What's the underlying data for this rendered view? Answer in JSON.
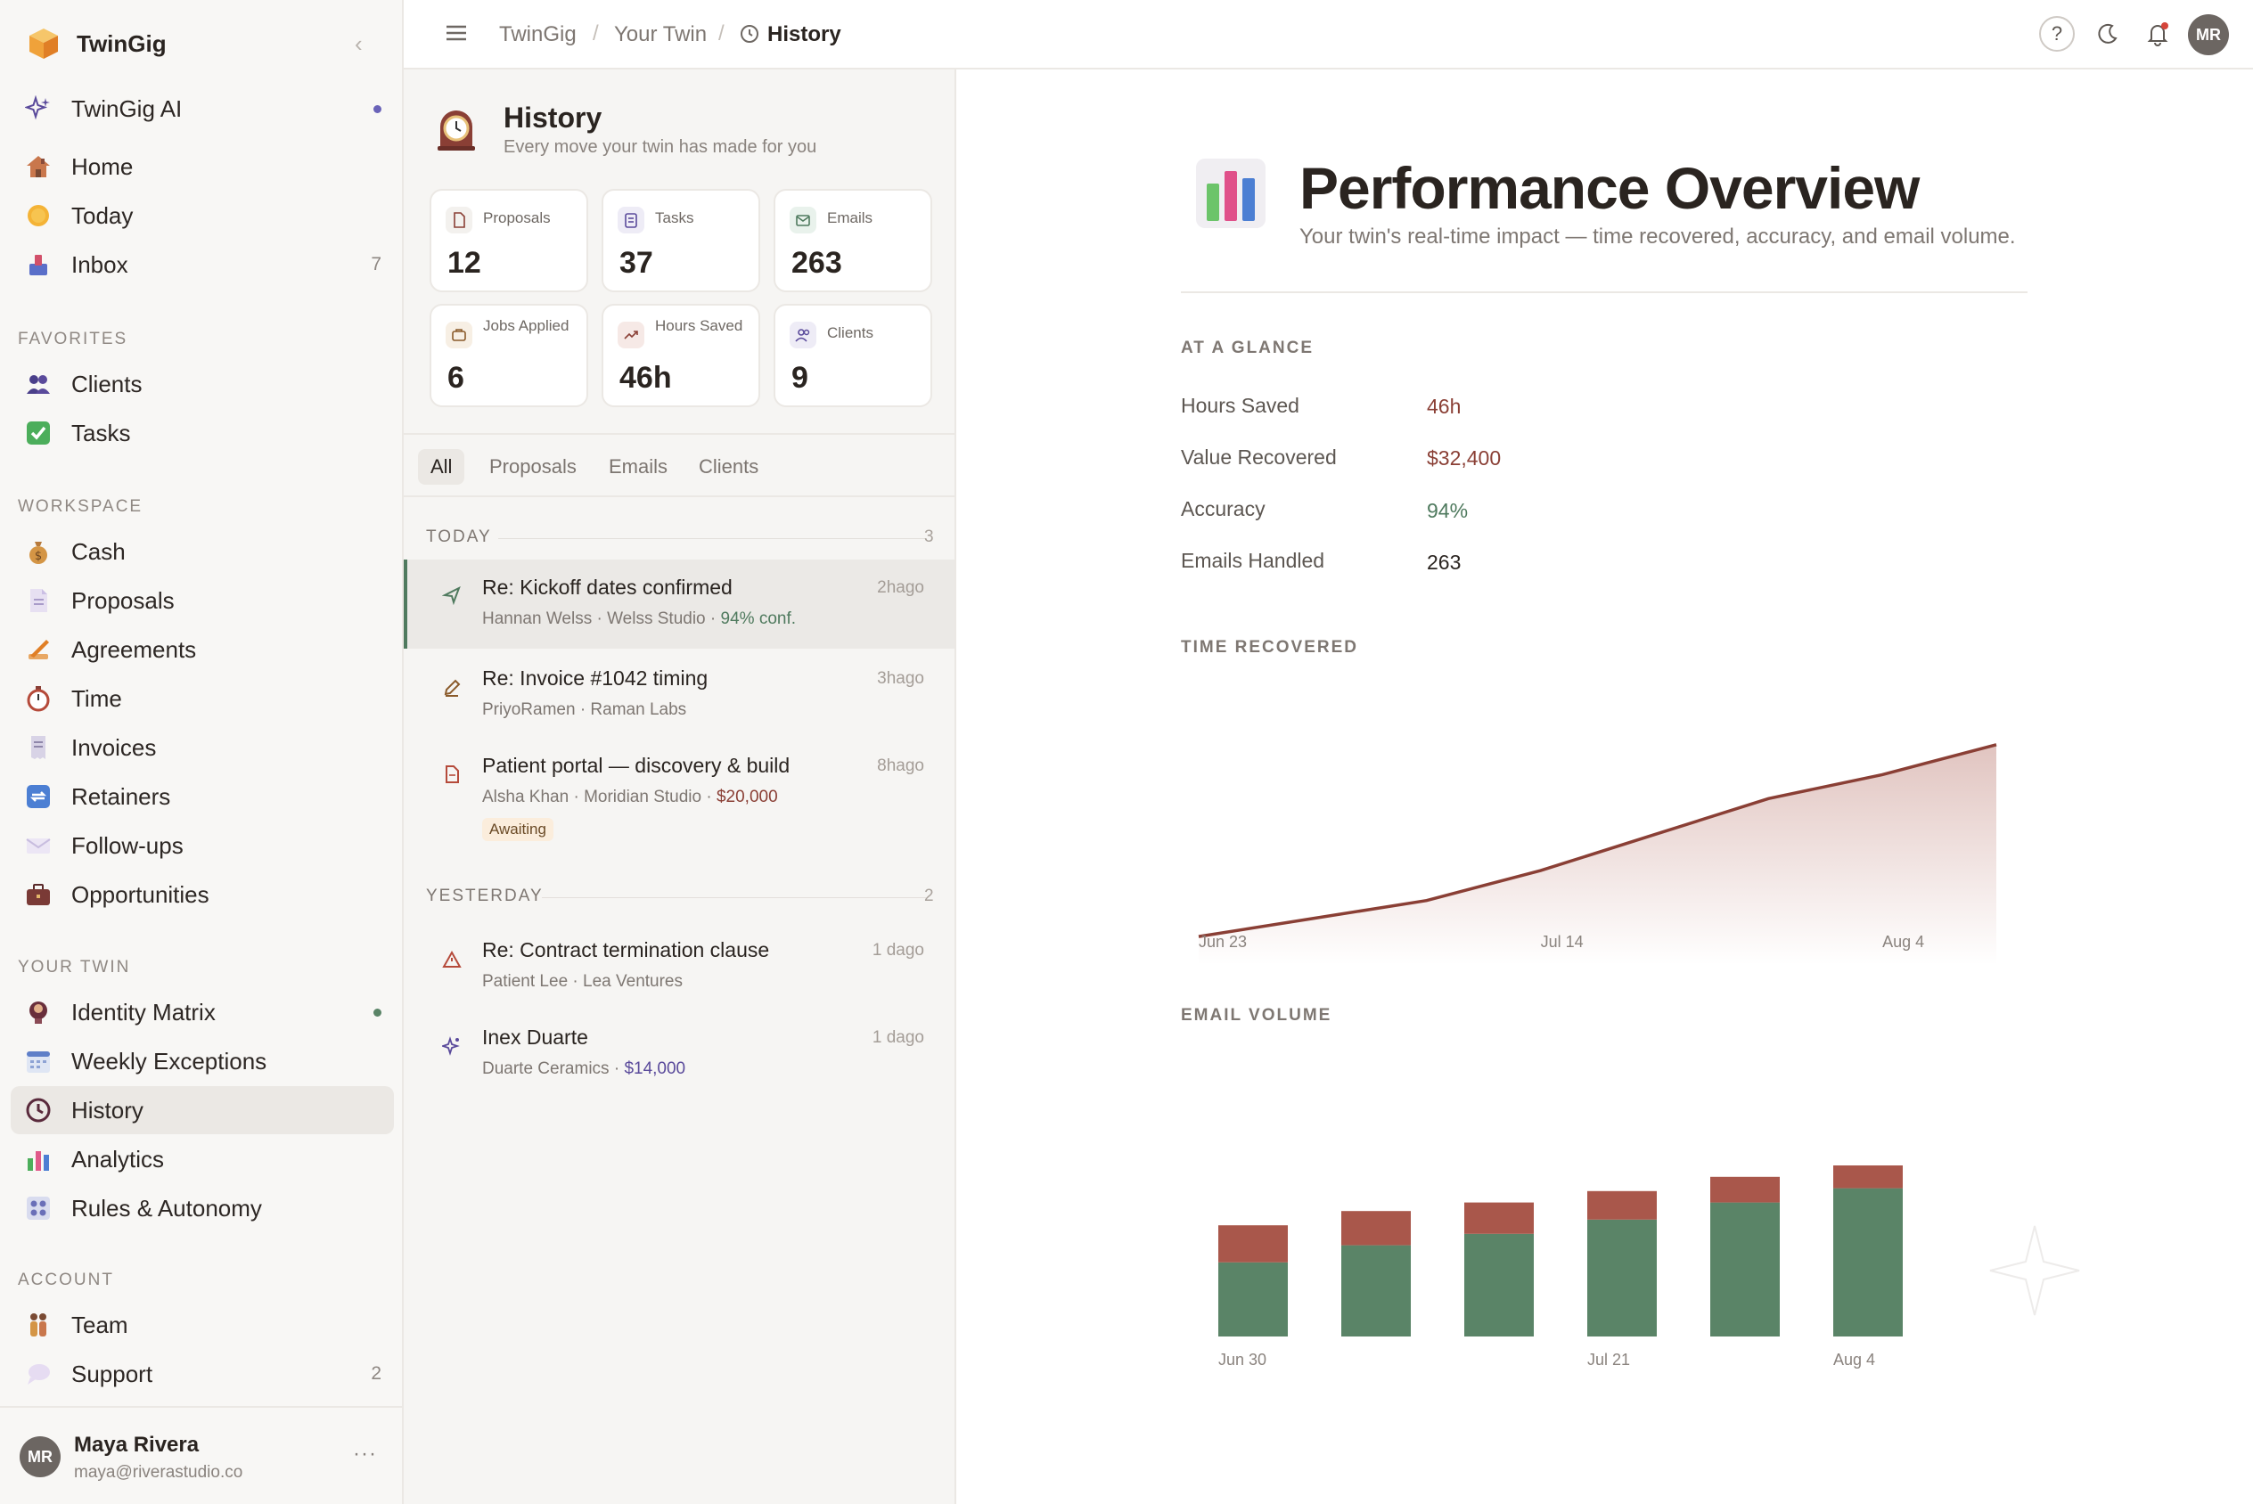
{
  "app": {
    "brand": "TwinGig",
    "ai_label": "TwinGig AI"
  },
  "sidebar": {
    "main": [
      {
        "label": "Home",
        "icon": "house-icon"
      },
      {
        "label": "Today",
        "icon": "sun-icon"
      },
      {
        "label": "Inbox",
        "icon": "inbox-icon",
        "count": "7"
      }
    ],
    "favorites_label": "FAVORITES",
    "favorites": [
      {
        "label": "Clients",
        "icon": "people-icon"
      },
      {
        "label": "Tasks",
        "icon": "checkbox-icon"
      }
    ],
    "workspace_label": "WORKSPACE",
    "workspace": [
      {
        "label": "Cash",
        "icon": "money-bag-icon"
      },
      {
        "label": "Proposals",
        "icon": "document-icon"
      },
      {
        "label": "Agreements",
        "icon": "writing-hand-icon"
      },
      {
        "label": "Time",
        "icon": "stopwatch-icon"
      },
      {
        "label": "Invoices",
        "icon": "receipt-icon"
      },
      {
        "label": "Retainers",
        "icon": "repeat-icon"
      },
      {
        "label": "Follow-ups",
        "icon": "envelope-icon"
      },
      {
        "label": "Opportunities",
        "icon": "briefcase-icon"
      }
    ],
    "twin_label": "YOUR TWIN",
    "twin": [
      {
        "label": "Identity Matrix",
        "icon": "identity-icon"
      },
      {
        "label": "Weekly Exceptions",
        "icon": "calendar-icon"
      },
      {
        "label": "History",
        "icon": "clock-icon"
      },
      {
        "label": "Analytics",
        "icon": "bar-chart-icon"
      },
      {
        "label": "Rules & Autonomy",
        "icon": "control-knobs-icon"
      }
    ],
    "account_label": "ACCOUNT",
    "account": [
      {
        "label": "Team",
        "icon": "team-icon"
      },
      {
        "label": "Support",
        "icon": "speech-bubble-icon",
        "count": "2"
      }
    ],
    "user": {
      "initials": "MR",
      "name": "Maya Rivera",
      "email": "maya@riverastudio.co",
      "more": "···"
    }
  },
  "topbar": {
    "breadcrumb": [
      "TwinGig",
      "Your Twin",
      "History"
    ],
    "separator": "/",
    "help": "?",
    "avatar_initials": "MR"
  },
  "history": {
    "title": "History",
    "subtitle": "Every move your twin has made for you",
    "stats": [
      {
        "label": "Proposals",
        "value": "12",
        "icon": "document-icon"
      },
      {
        "label": "Tasks",
        "value": "37",
        "icon": "clipboard-icon"
      },
      {
        "label": "Emails",
        "value": "263",
        "icon": "envelope-icon"
      },
      {
        "label": "Jobs Applied",
        "value": "6",
        "icon": "briefcase-icon"
      },
      {
        "label": "Hours Saved",
        "value": "46h",
        "icon": "trend-up-icon"
      },
      {
        "label": "Clients",
        "value": "9",
        "icon": "users-icon"
      }
    ],
    "filters": [
      "All",
      "Proposals",
      "Emails",
      "Clients"
    ],
    "groups": [
      {
        "label": "TODAY",
        "count": "3",
        "items": [
          {
            "title": "Re: Kickoff dates confirmed",
            "meta": "Hannan Welss · Welss Studio",
            "extra": "94% conf.",
            "time": "2hago",
            "icon": "send-icon"
          },
          {
            "title": "Re: Invoice #1042 timing",
            "meta": "PriyoRamen · Raman Labs",
            "extra": "",
            "time": "3hago",
            "icon": "pencil-icon"
          },
          {
            "title": "Patient portal — discovery & build",
            "meta": "Alsha Khan · Moridian Studio",
            "extra": "$20,000",
            "time": "8hago",
            "icon": "document-icon",
            "badge": "Awaiting"
          }
        ]
      },
      {
        "label": "YESTERDAY",
        "count": "2",
        "items": [
          {
            "title": "Re: Contract termination clause",
            "meta": "Patient Lee · Lea Ventures",
            "extra": "",
            "time": "1 dago",
            "icon": "warning-icon"
          },
          {
            "title": "Inex Duarte",
            "meta": "Duarte Ceramics",
            "extra": "$14,000",
            "time": "1 dago",
            "icon": "sparkle-icon"
          }
        ]
      }
    ]
  },
  "main": {
    "title": "Performance Overview",
    "subtitle": "Your twin's real-time impact — time recovered, accuracy, and email volume.",
    "glance_label": "AT A GLANCE",
    "glance": [
      {
        "label": "Hours Saved",
        "value": "46h",
        "color": "#8a3f35"
      },
      {
        "label": "Value Recovered",
        "value": "$32,400",
        "color": "#8a3f35"
      },
      {
        "label": "Accuracy",
        "value": "94%",
        "color": "#4f7a5e"
      },
      {
        "label": "Emails Handled",
        "value": "263",
        "color": "#2a2420"
      }
    ],
    "time_label": "TIME RECOVERED",
    "email_label": "EMAIL VOLUME"
  },
  "colors": {
    "accent_red": "#8a3f35",
    "accent_green": "#5a8467",
    "bar_top": "#a9574b"
  },
  "chart_data": [
    {
      "type": "area",
      "title": "TIME RECOVERED",
      "x": [
        "Jun 23",
        "Jun 30",
        "Jul 7",
        "Jul 14",
        "Jul 21",
        "Jul 28",
        "Aug 4",
        "Aug 11"
      ],
      "tick_labels": [
        "Jun 23",
        "Jul 14",
        "Aug 4"
      ],
      "values": [
        4,
        7,
        10,
        15,
        21,
        27,
        31,
        36
      ],
      "color": "#8a3f35"
    },
    {
      "type": "bar",
      "title": "EMAIL VOLUME",
      "stacked": true,
      "categories": [
        "Jun 30",
        "Jul 7",
        "Jul 14",
        "Jul 21",
        "Jul 28",
        "Aug 4"
      ],
      "tick_labels": [
        "Jun 30",
        "Jul 21",
        "Aug 4"
      ],
      "series": [
        {
          "values": [
            26,
            32,
            36,
            41,
            47,
            52
          ],
          "color": "#5a8467"
        },
        {
          "values": [
            13,
            12,
            11,
            10,
            9,
            8
          ],
          "color": "#a9574b"
        }
      ]
    }
  ]
}
